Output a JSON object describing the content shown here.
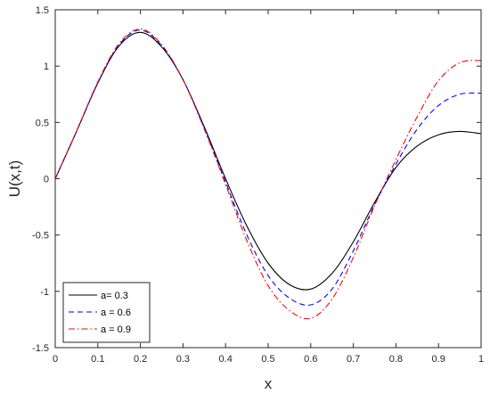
{
  "chart_data": {
    "type": "line",
    "title": "",
    "xlabel": "x",
    "ylabel": "U(x,t)",
    "xlim": [
      0,
      1
    ],
    "ylim": [
      -1.5,
      1.5
    ],
    "grid": false,
    "legend_position": "bottom-left",
    "x_ticks": [
      "0",
      "0.1",
      "0.2",
      "0.3",
      "0.4",
      "0.5",
      "0.6",
      "0.7",
      "0.8",
      "0.9",
      "1"
    ],
    "y_ticks": [
      "-1.5",
      "-1",
      "-0.5",
      "0",
      "0.5",
      "1",
      "1.5"
    ],
    "x": [
      0,
      0.05,
      0.1,
      0.15,
      0.2,
      0.25,
      0.3,
      0.35,
      0.4,
      0.45,
      0.5,
      0.55,
      0.6,
      0.65,
      0.7,
      0.75,
      0.8,
      0.85,
      0.9,
      0.95,
      1.0
    ],
    "series": [
      {
        "name": "a= 0.3",
        "color": "#000000",
        "dash": "solid",
        "values": [
          0,
          0.42,
          0.85,
          1.18,
          1.3,
          1.17,
          0.88,
          0.46,
          0.0,
          -0.42,
          -0.75,
          -0.94,
          -0.98,
          -0.84,
          -0.56,
          -0.21,
          0.1,
          0.29,
          0.39,
          0.42,
          0.4
        ]
      },
      {
        "name": "a = 0.6",
        "color": "#0000ff",
        "dash": "dashed",
        "values": [
          0,
          0.42,
          0.85,
          1.19,
          1.32,
          1.18,
          0.88,
          0.45,
          -0.03,
          -0.5,
          -0.86,
          -1.06,
          -1.12,
          -0.98,
          -0.64,
          -0.23,
          0.13,
          0.44,
          0.65,
          0.75,
          0.76
        ]
      },
      {
        "name": "a = 0.9",
        "color": "#ff0000",
        "dash": "dashdot",
        "values": [
          0,
          0.42,
          0.86,
          1.2,
          1.33,
          1.19,
          0.88,
          0.44,
          -0.05,
          -0.55,
          -0.95,
          -1.17,
          -1.24,
          -1.07,
          -0.7,
          -0.24,
          0.17,
          0.55,
          0.87,
          1.03,
          1.05
        ]
      }
    ]
  }
}
